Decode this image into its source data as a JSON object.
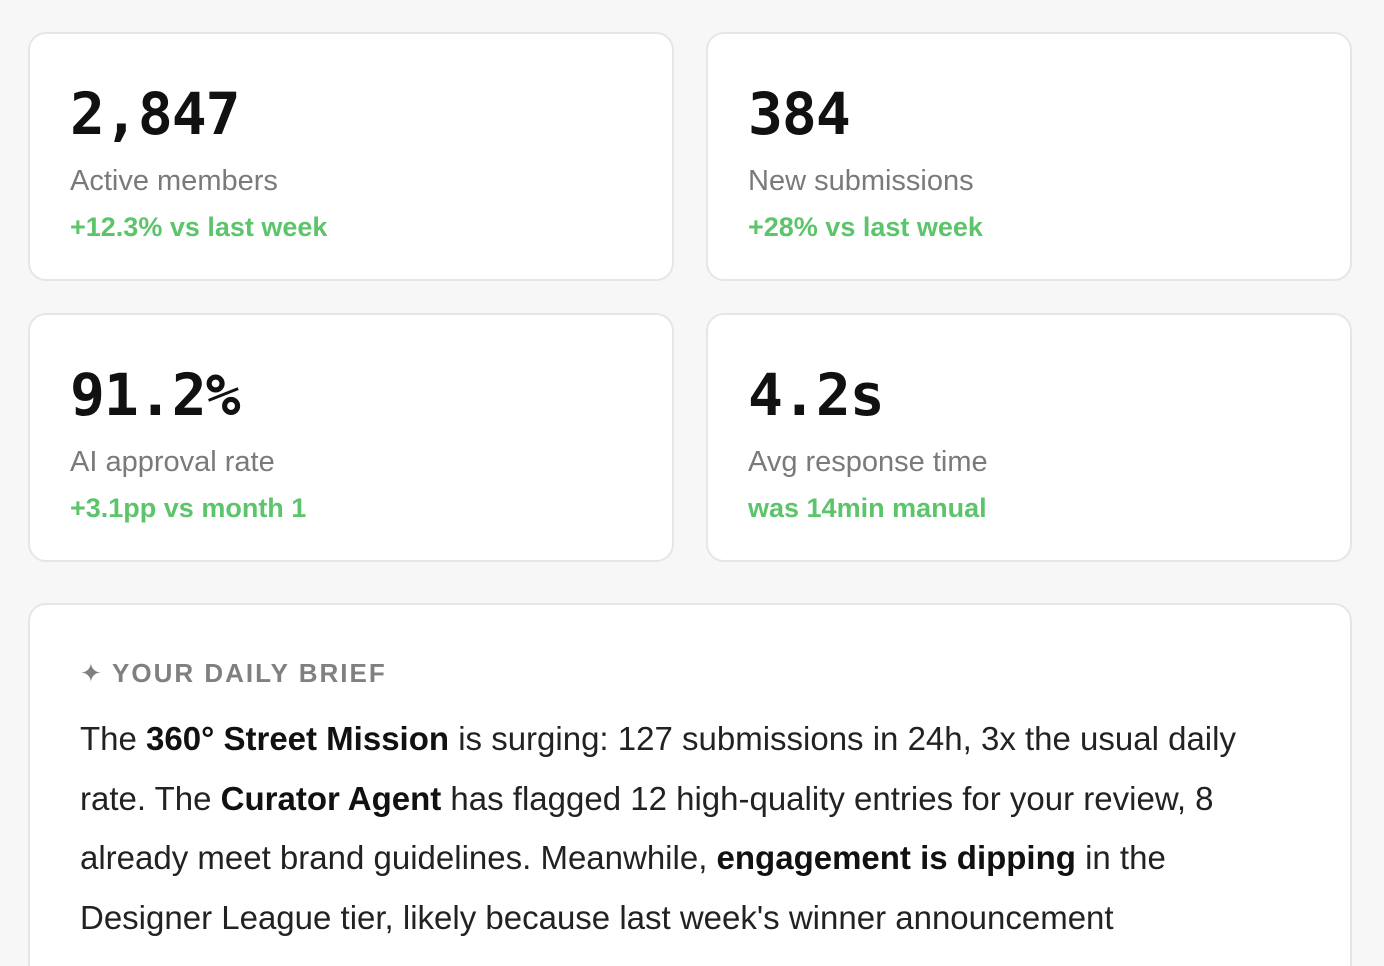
{
  "stats": [
    {
      "value": "2,847",
      "label": "Active members",
      "delta": "+12.3% vs last week"
    },
    {
      "value": "384",
      "label": "New submissions",
      "delta": "+28% vs last week"
    },
    {
      "value": "91.2%",
      "label": "AI approval rate",
      "delta": "+3.1pp vs month 1"
    },
    {
      "value": "4.2s",
      "label": "Avg response time",
      "delta": "was 14min manual"
    }
  ],
  "brief": {
    "icon": "sparkle-icon",
    "heading": "YOUR DAILY BRIEF",
    "segments": [
      {
        "text": "The ",
        "bold": false
      },
      {
        "text": "360° Street Mission",
        "bold": true
      },
      {
        "text": " is surging: 127 submissions in 24h, 3x the usual daily rate. The ",
        "bold": false
      },
      {
        "text": "Curator Agent",
        "bold": true
      },
      {
        "text": " has flagged 12 high-quality entries for your review, 8 already meet brand guidelines. Meanwhile, ",
        "bold": false
      },
      {
        "text": "engagement is dipping",
        "bold": true
      },
      {
        "text": " in the Designer League tier, likely because last week's winner announcement",
        "bold": false
      }
    ]
  },
  "colors": {
    "positive": "#5cc46a",
    "muted": "#7a7a7a",
    "background": "#f7f7f7",
    "card": "#ffffff",
    "border": "#e6e6e6"
  }
}
